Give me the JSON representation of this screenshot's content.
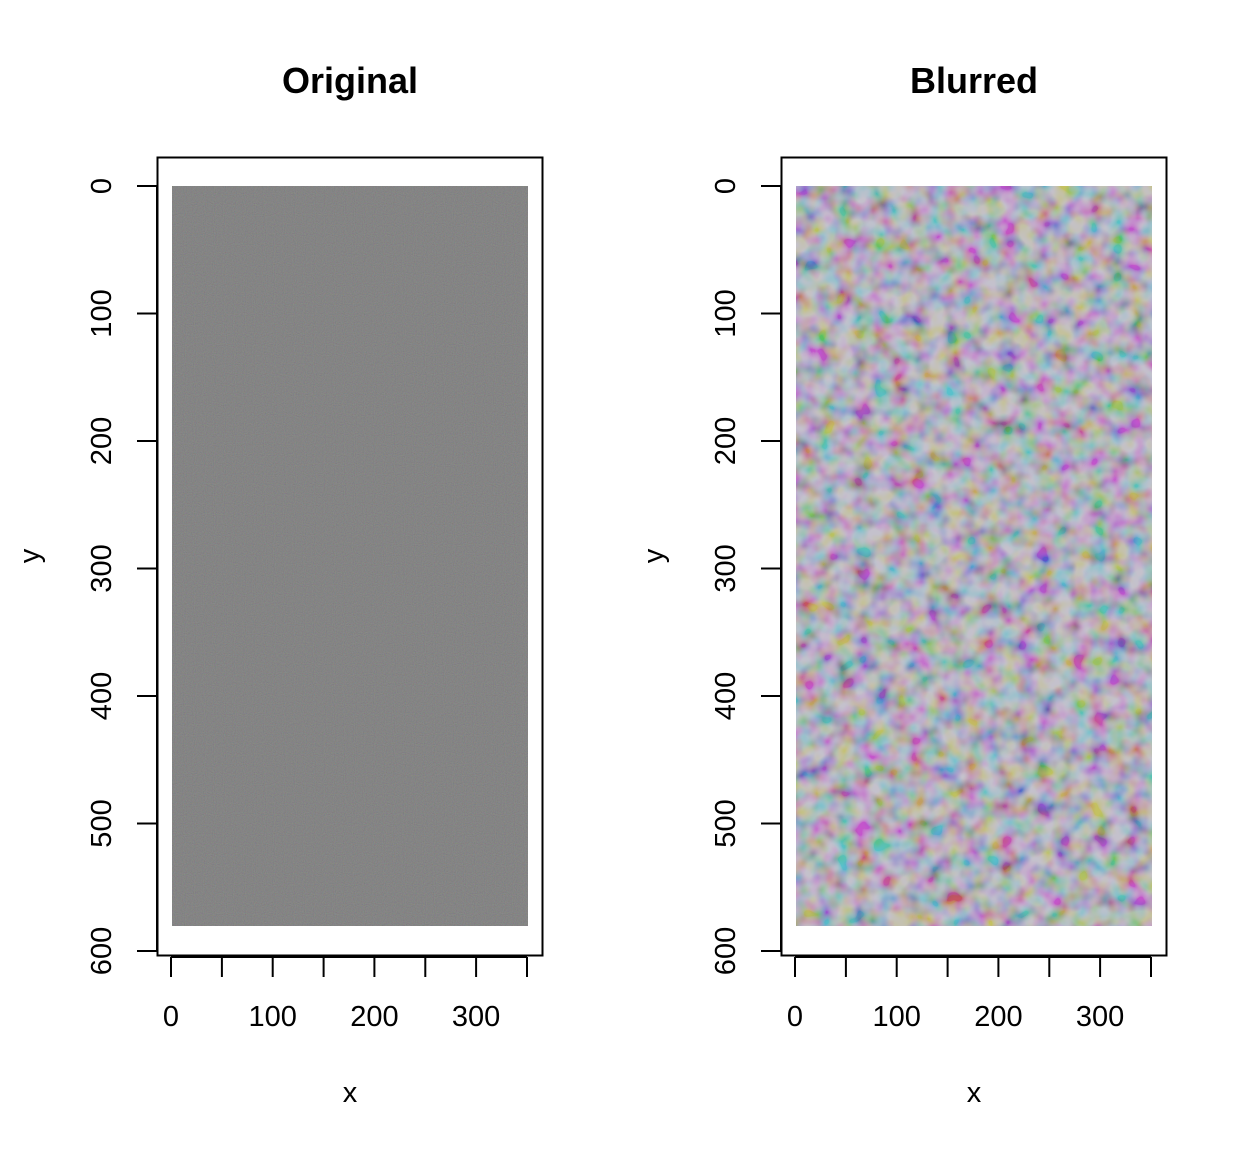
{
  "chart_data": [
    {
      "type": "heatmap",
      "title": "Original",
      "xlabel": "x",
      "ylabel": "y",
      "xlim": [
        0,
        350
      ],
      "ylim": [
        600,
        0
      ],
      "y_axis_reversed": true,
      "image_extent": {
        "x": [
          0,
          350
        ],
        "y": [
          0,
          580
        ]
      },
      "x_ticks": [
        0,
        50,
        100,
        150,
        200,
        250,
        300,
        350
      ],
      "x_tick_labels": [
        "0",
        "100",
        "200",
        "300"
      ],
      "y_ticks": [
        0,
        100,
        200,
        300,
        400,
        500,
        600
      ],
      "y_tick_labels": [
        "0",
        "100",
        "200",
        "300",
        "400",
        "500",
        "600"
      ],
      "content": "fine-grained random RGB noise, mean grey",
      "base_color": "#7a7a7a",
      "grid": false
    },
    {
      "type": "heatmap",
      "title": "Blurred",
      "xlabel": "x",
      "ylabel": "y",
      "xlim": [
        0,
        350
      ],
      "ylim": [
        600,
        0
      ],
      "y_axis_reversed": true,
      "image_extent": {
        "x": [
          0,
          350
        ],
        "y": [
          0,
          580
        ]
      },
      "x_ticks": [
        0,
        50,
        100,
        150,
        200,
        250,
        300,
        350
      ],
      "x_tick_labels": [
        "0",
        "100",
        "200",
        "300"
      ],
      "y_ticks": [
        0,
        100,
        200,
        300,
        400,
        500,
        600
      ],
      "y_tick_labels": [
        "0",
        "100",
        "200",
        "300",
        "400",
        "500",
        "600"
      ],
      "content": "blurred random RGB noise, soft pastel blotches",
      "base_color": "#9a94a8",
      "grid": false
    }
  ]
}
